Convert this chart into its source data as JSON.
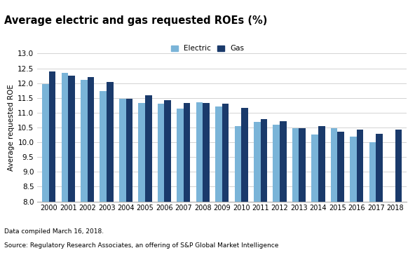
{
  "title": "Average electric and gas requested ROEs (%)",
  "ylabel": "Average requested ROE",
  "years": [
    2000,
    2001,
    2002,
    2003,
    2004,
    2005,
    2006,
    2007,
    2008,
    2009,
    2010,
    2011,
    2012,
    2013,
    2014,
    2015,
    2016,
    2017,
    2018
  ],
  "electric": [
    11.97,
    12.35,
    12.12,
    11.72,
    11.46,
    11.33,
    11.3,
    11.15,
    11.35,
    11.2,
    10.55,
    10.69,
    10.59,
    10.47,
    10.27,
    10.48,
    10.19,
    10.0,
    null
  ],
  "gas": [
    12.4,
    12.25,
    12.2,
    12.04,
    11.46,
    11.59,
    11.43,
    11.32,
    11.33,
    11.3,
    11.16,
    10.78,
    10.71,
    10.47,
    10.55,
    10.35,
    10.42,
    10.28,
    10.42
  ],
  "electric_color": "#7ab4d8",
  "gas_color": "#1a3a6b",
  "ylim_min": 8.0,
  "ylim_max": 13.0,
  "yticks": [
    8.0,
    8.5,
    9.0,
    9.5,
    10.0,
    10.5,
    11.0,
    11.5,
    12.0,
    12.5,
    13.0
  ],
  "footnote1": "Data compiled March 16, 2018.",
  "footnote2": "Source: Regulatory Research Associates, an offering of S&P Global Market Intelligence",
  "background_color": "#ffffff",
  "title_bg_color": "#e8e8e8",
  "grid_color": "#cccccc"
}
